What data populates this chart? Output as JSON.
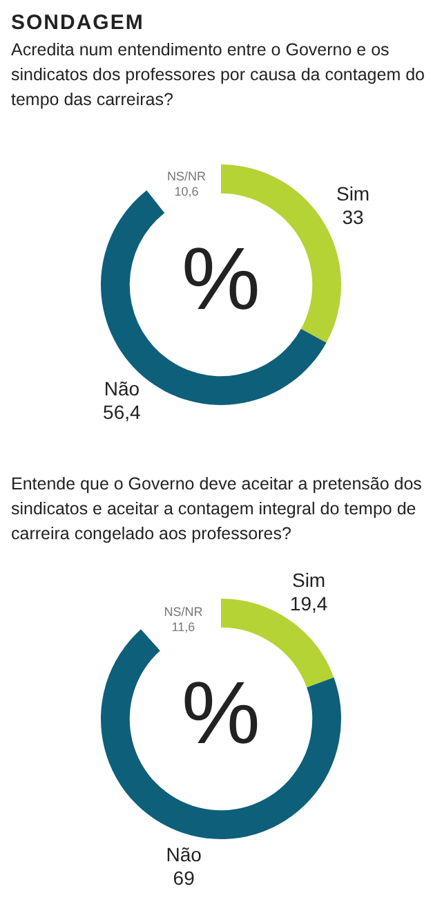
{
  "chart_data": [
    {
      "type": "donut",
      "title": "SONDAGEM",
      "subtitle": "Acredita num entendimento entre o Governo e os sindicatos dos professores por causa da contagem do tempo das carreiras?",
      "categories": [
        "Sim",
        "Não",
        "NS/NR"
      ],
      "values": [
        33,
        56.4,
        10.6
      ],
      "value_labels": [
        "33",
        "56,4",
        "10,6"
      ],
      "colors": [
        "#b5d334",
        "#0e5f7a",
        "#ffffff"
      ],
      "legend": false,
      "annotations": [
        "%"
      ]
    },
    {
      "type": "donut",
      "title": "Entende que o Governo deve aceitar a pretensão dos sindicatos e aceitar a contagem integral do tempo de carreira congelado aos professores?",
      "categories": [
        "Sim",
        "Não",
        "NS/NR"
      ],
      "values": [
        19.4,
        69,
        11.6
      ],
      "value_labels": [
        "19,4",
        "69",
        "11,6"
      ],
      "colors": [
        "#b5d334",
        "#0e5f7a",
        "#ffffff"
      ],
      "legend": false,
      "annotations": [
        "%"
      ]
    }
  ]
}
